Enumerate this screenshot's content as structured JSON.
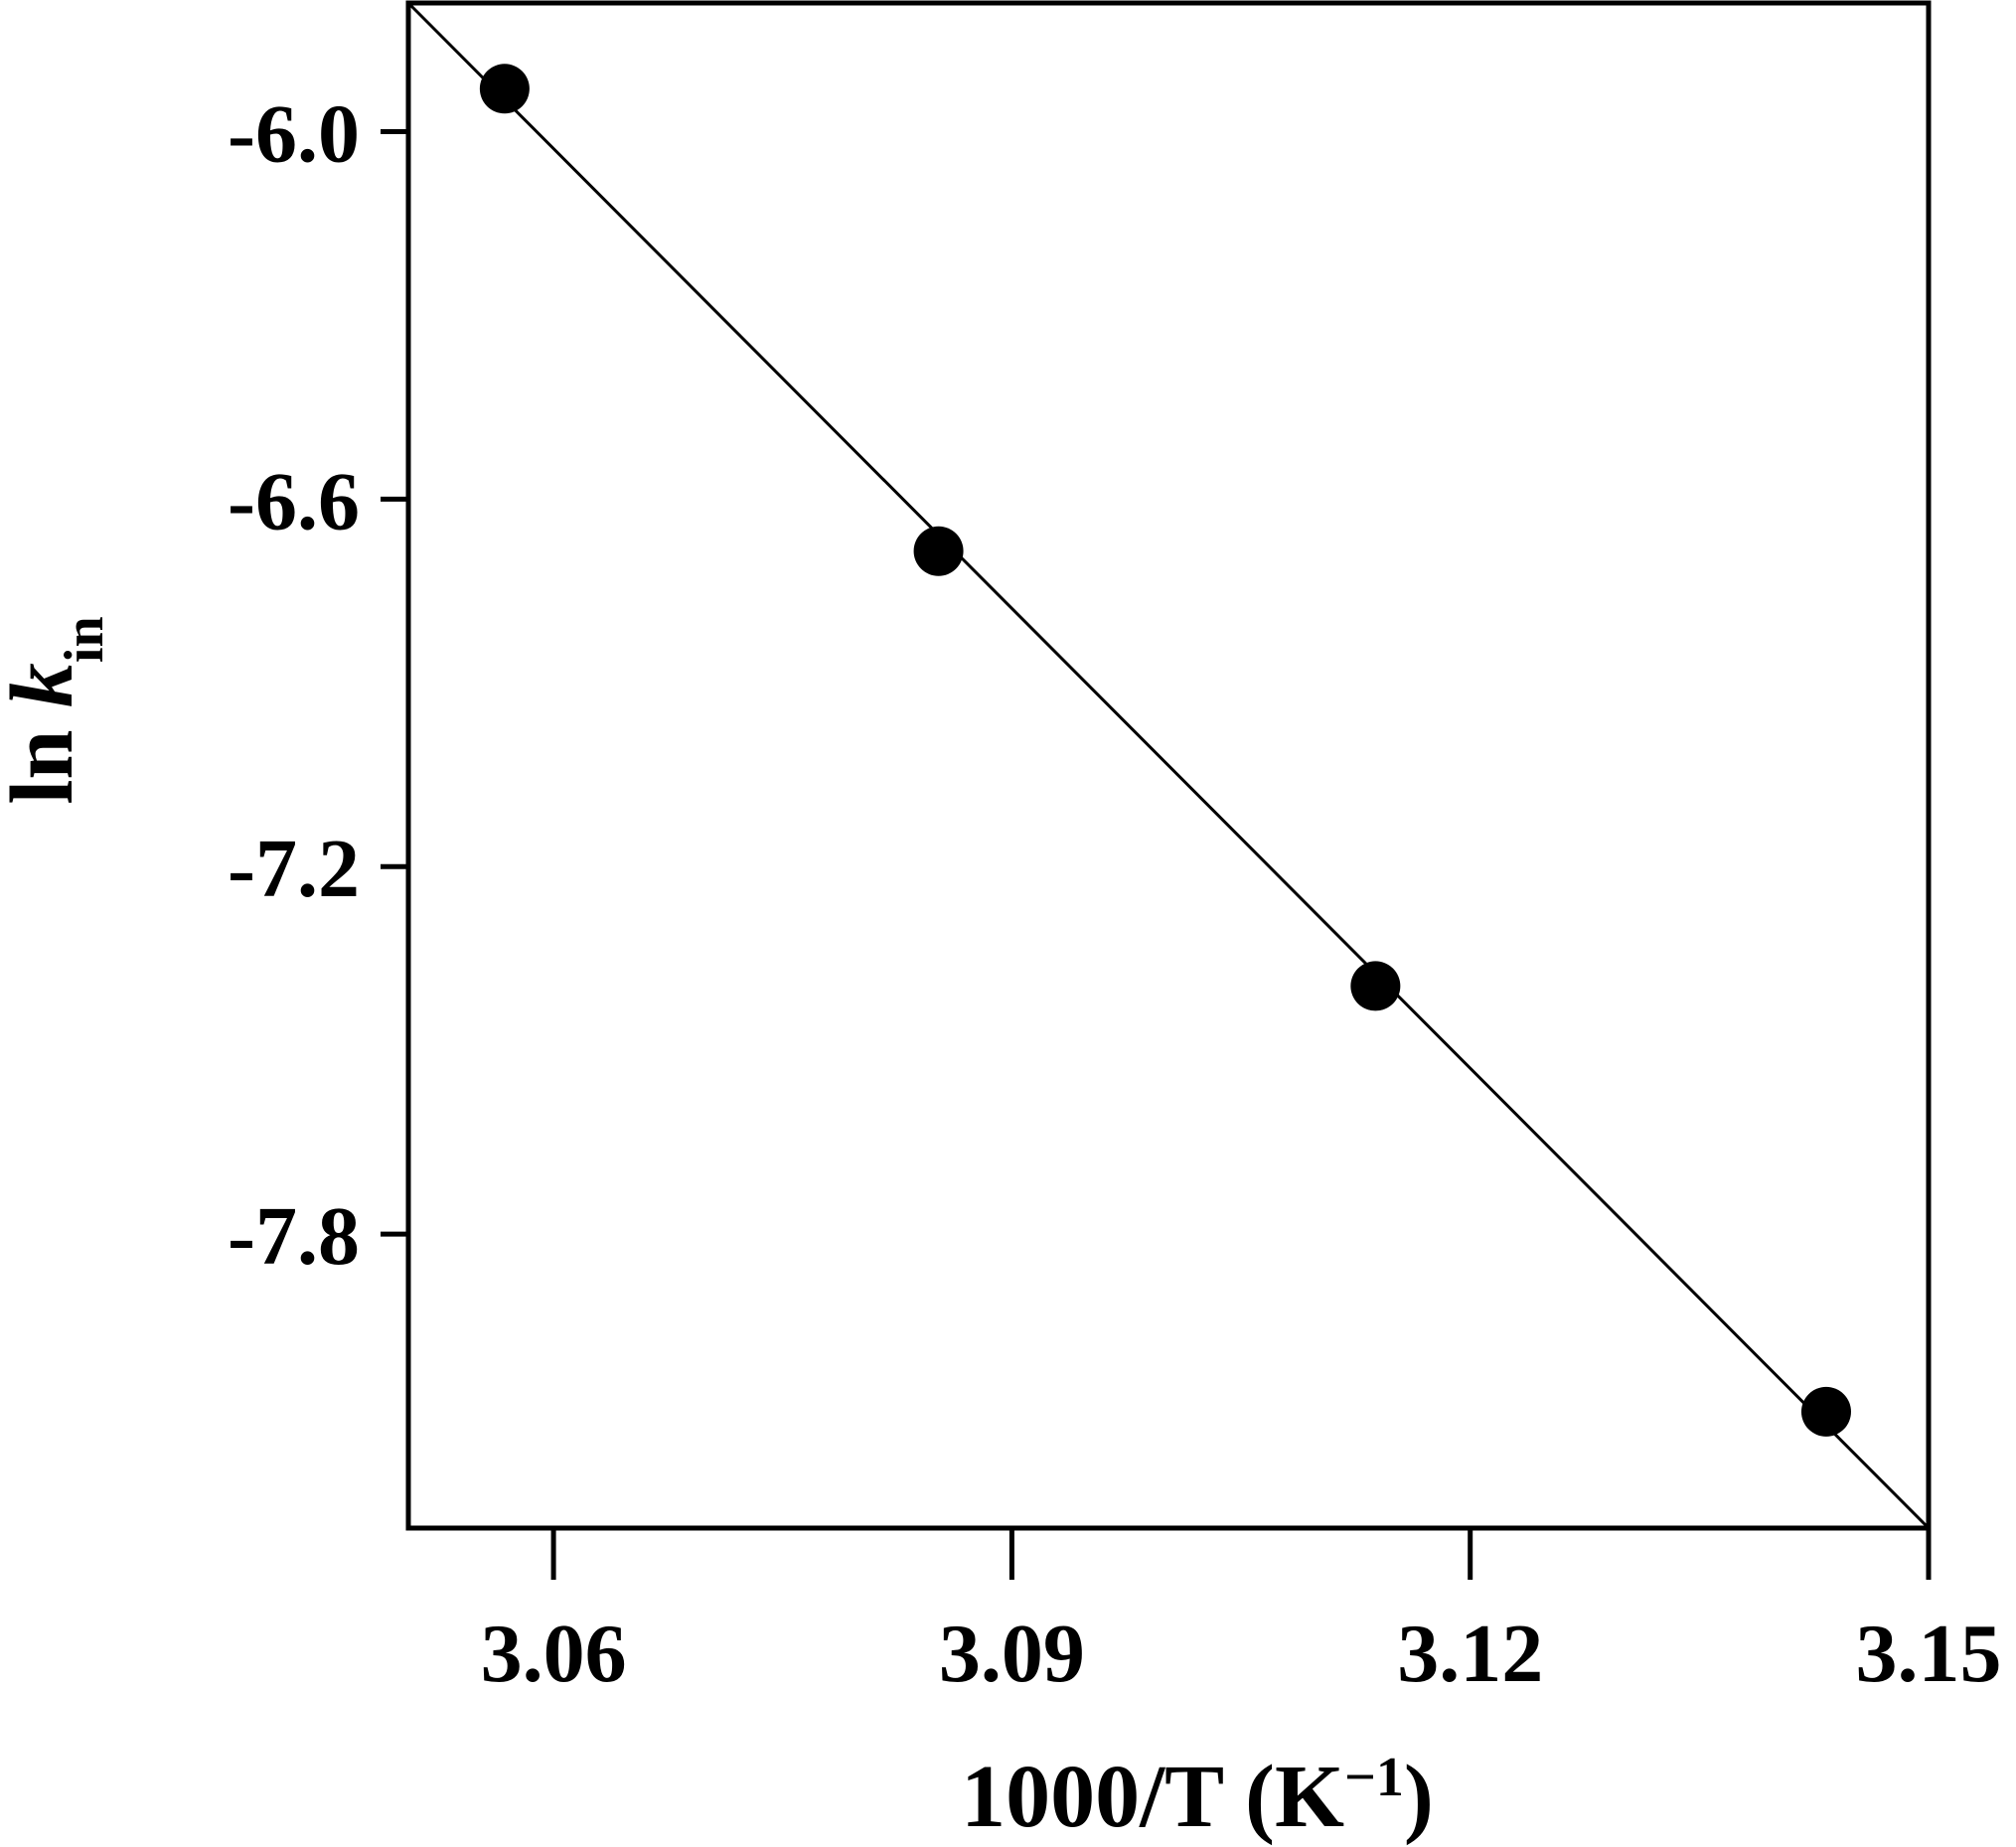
{
  "chart_data": {
    "type": "scatter",
    "title": "",
    "x_label": {
      "prefix": "1000/T (K",
      "superscript": "−1",
      "suffix": ")"
    },
    "y_label": {
      "prefix": "ln ",
      "italic": "k",
      "subscript": "in"
    },
    "xlim": [
      3.0505,
      3.15
    ],
    "ylim": [
      -8.28,
      -5.79
    ],
    "x_ticks": [
      {
        "value": 3.06,
        "label": "3.06"
      },
      {
        "value": 3.09,
        "label": "3.09"
      },
      {
        "value": 3.12,
        "label": "3.12"
      },
      {
        "value": 3.15,
        "label": "3.15"
      }
    ],
    "y_ticks": [
      {
        "value": -6.0,
        "label": "-6.0"
      },
      {
        "value": -6.6,
        "label": "-6.6"
      },
      {
        "value": -7.2,
        "label": "-7.2"
      },
      {
        "value": -7.8,
        "label": "-7.8"
      }
    ],
    "series": [
      {
        "marker": "filled-circle",
        "color": "#000000",
        "points": [
          {
            "x": 3.0568,
            "y": -5.93
          },
          {
            "x": 3.0852,
            "y": -6.685
          },
          {
            "x": 3.1138,
            "y": -7.395
          },
          {
            "x": 3.1433,
            "y": -8.09
          }
        ]
      }
    ],
    "fit_line": {
      "color": "#000000",
      "style": "solid",
      "x": [
        3.0505,
        3.15
      ],
      "y": [
        -5.79,
        -8.28
      ]
    },
    "grid": false,
    "legend": "none"
  }
}
